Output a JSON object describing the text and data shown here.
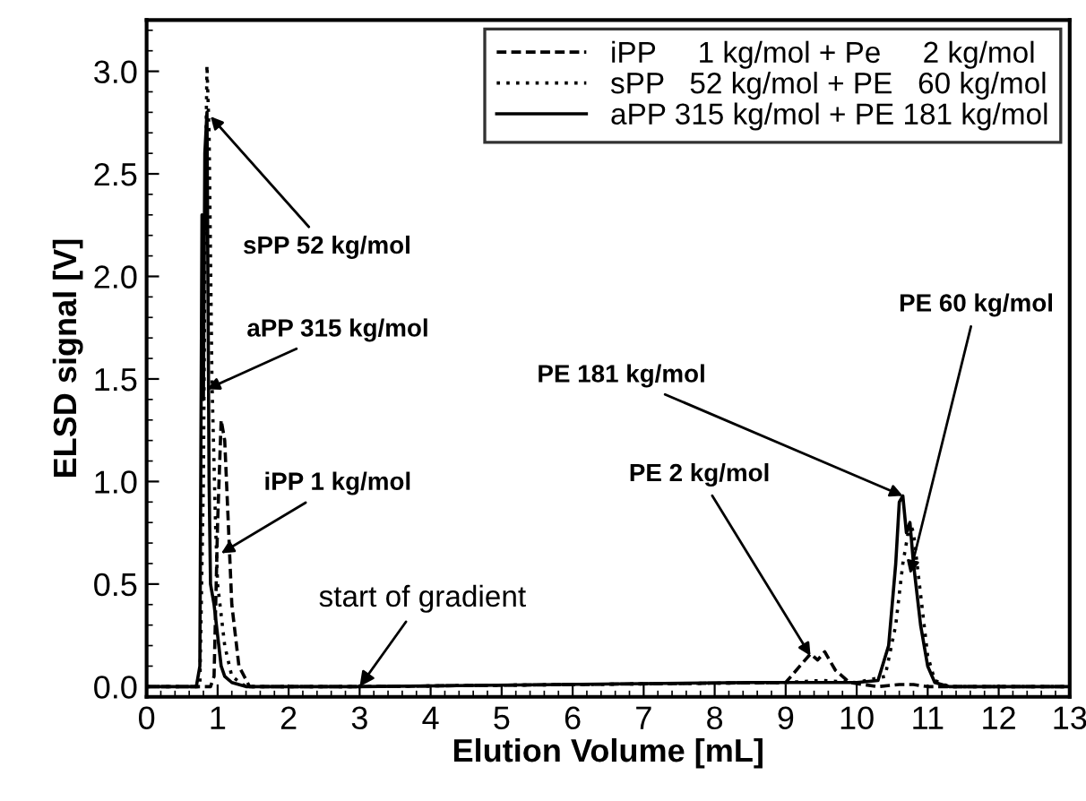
{
  "chart_data": {
    "type": "line",
    "xlabel": "Elution Volume [mL]",
    "ylabel": "ELSD signal [V]",
    "xlim": [
      0,
      13
    ],
    "ylim": [
      -0.05,
      3.25
    ],
    "xticks": [
      0,
      1,
      2,
      3,
      4,
      5,
      6,
      7,
      8,
      9,
      10,
      11,
      12,
      13
    ],
    "yticks": [
      {
        "value": 0,
        "label": "0.0"
      },
      {
        "value": 0.5,
        "label": "0.5"
      },
      {
        "value": 1,
        "label": "1.0"
      },
      {
        "value": 1.5,
        "label": "1.5"
      },
      {
        "value": 2,
        "label": "2.0"
      },
      {
        "value": 2.5,
        "label": "2.5"
      },
      {
        "value": 3,
        "label": "3.0"
      }
    ],
    "grid": false,
    "legend": "top right",
    "marker": "none",
    "series": [
      {
        "name": "iPP     1 kg/mol + Pe     2 kg/mol",
        "color": "#000000",
        "line_style": "dashed",
        "x": [
          0,
          0.9,
          0.95,
          1.0,
          1.05,
          1.1,
          1.15,
          1.2,
          1.3,
          1.45,
          3,
          9.0,
          9.2,
          9.35,
          9.45,
          9.55,
          9.7,
          9.9,
          10.3,
          10.6,
          10.8,
          11,
          13
        ],
        "values": [
          0,
          0,
          0.05,
          0.8,
          1.3,
          1.2,
          0.8,
          0.4,
          0.1,
          0,
          0,
          0.02,
          0.1,
          0.16,
          0.13,
          0.17,
          0.08,
          0.02,
          0,
          0.01,
          0.01,
          0,
          0
        ]
      },
      {
        "name": "sPP   52 kg/mol + PE   60 kg/mol",
        "color": "#000000",
        "line_style": "dotted",
        "x": [
          0,
          0.75,
          0.8,
          0.83,
          0.85,
          0.88,
          0.92,
          0.97,
          1.0,
          1.1,
          1.2,
          1.4,
          3,
          9,
          9.5,
          10,
          10.4,
          10.55,
          10.65,
          10.75,
          10.8,
          10.9,
          11.0,
          11.1,
          11.3,
          13
        ],
        "values": [
          0,
          0,
          1.0,
          2.5,
          3.03,
          2.7,
          1.5,
          0.8,
          0.5,
          0.2,
          0.05,
          0,
          0,
          0.02,
          0.03,
          0.02,
          0.05,
          0.3,
          0.6,
          0.8,
          0.75,
          0.45,
          0.15,
          0.03,
          0,
          0
        ]
      },
      {
        "name": "aPP 315 kg/mol + PE 181 kg/mol",
        "color": "#000000",
        "line_style": "solid",
        "x": [
          0,
          0.7,
          0.75,
          0.78,
          0.8,
          0.82,
          0.85,
          0.88,
          0.9,
          0.95,
          1.0,
          1.05,
          1.1,
          1.2,
          1.4,
          3,
          8.5,
          8.8,
          9.5,
          10.0,
          10.3,
          10.45,
          10.55,
          10.6,
          10.65,
          10.7,
          10.75,
          10.8,
          10.9,
          11.0,
          11.1,
          11.3,
          13
        ],
        "values": [
          0,
          0,
          0.1,
          2.3,
          1.4,
          2.6,
          2.8,
          1.0,
          0.5,
          0.4,
          0.25,
          0.1,
          0.05,
          0.02,
          0,
          0,
          0.02,
          0.02,
          0.02,
          0.02,
          0.03,
          0.2,
          0.6,
          0.9,
          0.93,
          0.75,
          0.8,
          0.6,
          0.3,
          0.1,
          0.02,
          0,
          0
        ]
      }
    ],
    "annotations": [
      {
        "text": "sPP 52 kg/mol",
        "x": 0.9,
        "y": 2.78
      },
      {
        "text": "aPP 315 kg/mol",
        "x": 0.85,
        "y": 1.45
      },
      {
        "text": "iPP 1 kg/mol",
        "x": 1.05,
        "y": 0.65
      },
      {
        "text": "start of gradient",
        "x": 3.0,
        "y": 0.0
      },
      {
        "text": "PE 2 kg/mol",
        "x": 9.35,
        "y": 0.15
      },
      {
        "text": "PE 181 kg/mol",
        "x": 10.65,
        "y": 0.93
      },
      {
        "text": "PE 60 kg/mol",
        "x": 10.75,
        "y": 0.55
      }
    ]
  }
}
